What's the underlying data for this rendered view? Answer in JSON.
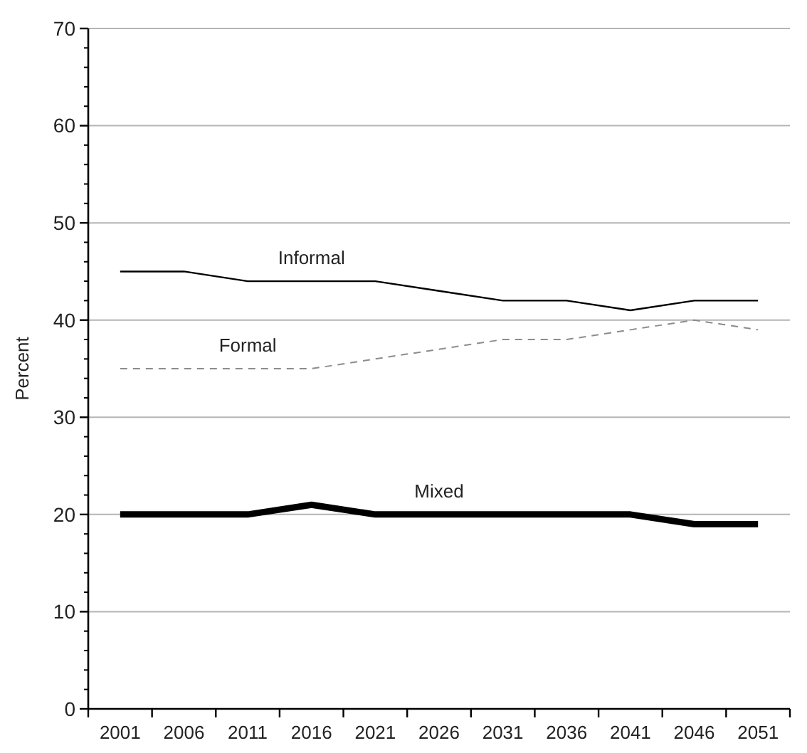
{
  "chart_data": {
    "type": "line",
    "ylabel": "Percent",
    "categories": [
      "2001",
      "2006",
      "2011",
      "2016",
      "2021",
      "2026",
      "2031",
      "2036",
      "2041",
      "2046",
      "2051"
    ],
    "ylim": [
      0,
      70
    ],
    "yticks": [
      0,
      10,
      20,
      30,
      40,
      50,
      60,
      70
    ],
    "grid": "y",
    "marker": "none",
    "series": [
      {
        "name": "Informal",
        "color": "#000000",
        "line_style": "solid",
        "values": [
          45,
          45,
          44,
          44,
          44,
          43,
          42,
          42,
          41,
          42,
          42
        ]
      },
      {
        "name": "Formal",
        "color": "#8c8c8c",
        "line_style": "dashed",
        "values": [
          35,
          35,
          35,
          35,
          36,
          37,
          38,
          38,
          39,
          40,
          39
        ]
      },
      {
        "name": "Mixed",
        "color": "#000000",
        "line_style": "solid",
        "values": [
          20,
          20,
          20,
          21,
          20,
          20,
          20,
          20,
          20,
          19,
          19
        ]
      }
    ]
  }
}
